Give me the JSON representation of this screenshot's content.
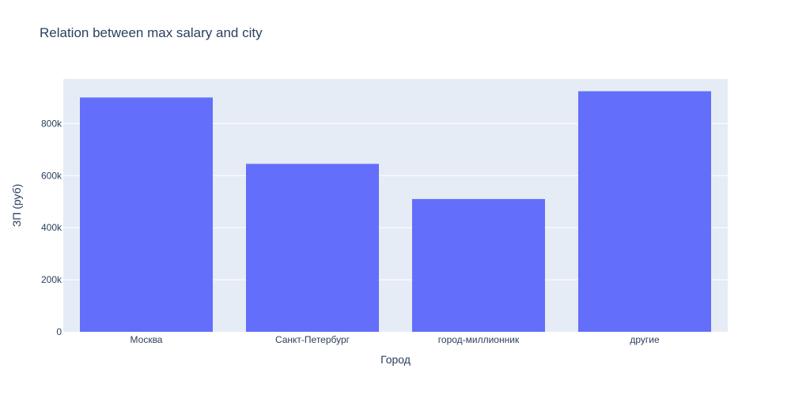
{
  "chart_data": {
    "type": "bar",
    "title": "Relation between max salary and city",
    "xlabel": "Город",
    "ylabel": "ЗП (руб)",
    "categories": [
      "Москва",
      "Санкт-Петербург",
      "город-миллионник",
      "другие"
    ],
    "values": [
      900000,
      645000,
      510000,
      924000
    ],
    "ylim": [
      0,
      971000
    ],
    "yticks": [
      0,
      200000,
      400000,
      600000,
      800000
    ],
    "ytick_labels": [
      "0",
      "200k",
      "400k",
      "600k",
      "800k"
    ],
    "grid": true,
    "legend": "none",
    "colors": {
      "bar": "#636efa",
      "plot_bg": "#e5ecf6",
      "grid": "#ffffff",
      "text": "#2a3f5f"
    }
  }
}
